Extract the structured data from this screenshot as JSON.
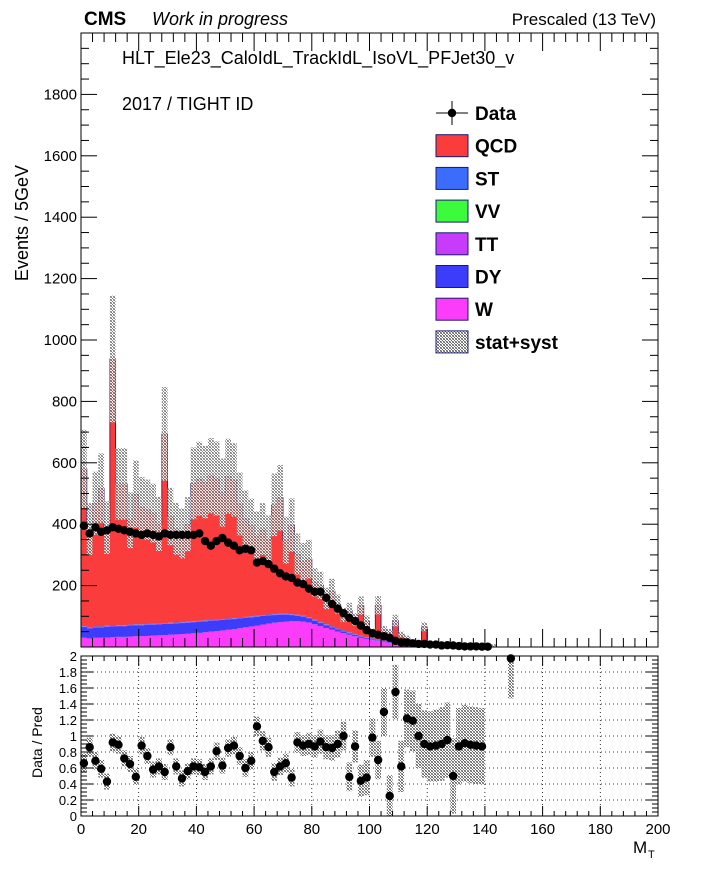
{
  "header": {
    "experiment": "CMS",
    "status": "Work in progress",
    "energy": "Prescaled (13 TeV)",
    "trigger": "HLT_Ele23_CaloIdL_TrackIdL_IsoVL_PFJet30_v",
    "selection": "2017 / TIGHT ID"
  },
  "colors": {
    "QCD": "#fb3c3c",
    "ST": "#3c6cfb",
    "VV": "#3cfb3c",
    "TT": "#c73cfb",
    "DY": "#3c3cfb",
    "W": "#fb3cfb",
    "data": "#000000",
    "band": "#777777"
  },
  "chart_data": [
    {
      "type": "bar",
      "stacked": true,
      "title": "",
      "xlabel": "M_T",
      "ylabel": "Events / 5GeV",
      "xlim": [
        0,
        200
      ],
      "ylim": [
        0,
        2000
      ],
      "x_ticks": [
        0,
        20,
        40,
        60,
        80,
        100,
        120,
        140,
        160,
        180,
        200
      ],
      "y_ticks": [
        200,
        400,
        600,
        800,
        1000,
        1200,
        1400,
        1600,
        1800
      ],
      "grid": false,
      "legend_position": "top-right",
      "bin_width": 2,
      "legend": [
        {
          "name": "Data",
          "style": "marker"
        },
        {
          "name": "QCD",
          "style": "fill"
        },
        {
          "name": "ST",
          "style": "fill"
        },
        {
          "name": "VV",
          "style": "fill"
        },
        {
          "name": "TT",
          "style": "fill"
        },
        {
          "name": "DY",
          "style": "fill"
        },
        {
          "name": "W",
          "style": "fill"
        },
        {
          "name": "stat+syst",
          "style": "hatch"
        }
      ],
      "x": [
        1,
        3,
        5,
        7,
        9,
        11,
        13,
        15,
        17,
        19,
        21,
        23,
        25,
        27,
        29,
        31,
        33,
        35,
        37,
        39,
        41,
        43,
        45,
        47,
        49,
        51,
        53,
        55,
        57,
        59,
        61,
        63,
        65,
        67,
        69,
        71,
        73,
        75,
        77,
        79,
        81,
        83,
        85,
        87,
        89,
        91,
        93,
        95,
        97,
        99,
        101,
        103,
        105,
        107,
        109,
        111,
        113,
        115,
        117,
        119,
        121,
        123,
        125,
        127,
        129,
        131,
        133,
        135,
        137,
        139,
        141,
        143,
        145,
        147,
        149,
        151
      ],
      "series": [
        {
          "name": "W",
          "values": [
            30,
            28,
            30,
            30,
            31,
            32,
            33,
            33,
            34,
            35,
            35,
            36,
            37,
            38,
            39,
            40,
            41,
            42,
            43,
            45,
            46,
            48,
            50,
            52,
            54,
            56,
            58,
            61,
            64,
            67,
            70,
            73,
            76,
            79,
            81,
            83,
            84,
            84,
            83,
            80,
            74,
            68,
            62,
            56,
            50,
            45,
            40,
            35,
            30,
            26,
            22,
            19,
            16,
            13,
            11,
            9,
            7,
            6,
            5,
            4,
            4,
            3,
            3,
            2,
            2,
            2,
            1,
            1,
            1,
            1,
            1,
            1,
            0,
            0,
            0,
            0
          ]
        },
        {
          "name": "DY",
          "values": [
            35,
            33,
            34,
            34,
            35,
            35,
            35,
            35,
            36,
            36,
            36,
            36,
            36,
            36,
            36,
            36,
            36,
            36,
            36,
            36,
            36,
            36,
            35,
            35,
            34,
            34,
            33,
            32,
            31,
            30,
            29,
            28,
            27,
            25,
            24,
            22,
            20,
            18,
            16,
            14,
            12,
            10,
            9,
            8,
            7,
            6,
            5,
            4,
            4,
            3,
            3,
            2,
            2,
            2,
            1,
            1,
            1,
            1,
            1,
            1,
            0,
            0,
            0,
            0,
            0,
            0,
            0,
            0,
            0,
            0,
            0,
            0,
            0,
            0,
            0,
            0
          ]
        },
        {
          "name": "TT",
          "values": [
            1,
            1,
            1,
            1,
            1,
            1,
            1,
            1,
            1,
            1,
            1,
            1,
            1,
            1,
            1,
            1,
            1,
            1,
            1,
            1,
            1,
            1,
            1,
            1,
            1,
            1,
            1,
            1,
            1,
            1,
            1,
            1,
            1,
            1,
            1,
            1,
            1,
            1,
            1,
            1,
            1,
            1,
            1,
            1,
            1,
            1,
            1,
            1,
            1,
            1,
            1,
            1,
            1,
            1,
            1,
            1,
            0,
            0,
            0,
            0,
            0,
            0,
            0,
            0,
            0,
            0,
            0,
            0,
            0,
            0,
            0,
            0,
            0,
            0,
            0,
            0
          ]
        },
        {
          "name": "VV",
          "values": [
            0,
            0,
            0,
            0,
            0,
            0,
            0,
            0,
            0,
            0,
            0,
            0,
            0,
            0,
            0,
            0,
            0,
            0,
            0,
            0,
            0,
            0,
            0,
            0,
            0,
            0,
            0,
            0,
            0,
            0,
            0,
            0,
            0,
            0,
            0,
            0,
            0,
            0,
            0,
            0,
            0,
            0,
            0,
            0,
            0,
            0,
            0,
            0,
            0,
            0,
            0,
            0,
            0,
            0,
            0,
            0,
            0,
            0,
            0,
            0,
            0,
            0,
            0,
            0,
            0,
            0,
            0,
            0,
            0,
            0,
            0,
            0,
            0,
            0,
            0,
            0
          ]
        },
        {
          "name": "ST",
          "values": [
            2,
            2,
            2,
            2,
            2,
            2,
            2,
            2,
            2,
            2,
            2,
            2,
            2,
            2,
            2,
            2,
            2,
            2,
            2,
            2,
            2,
            2,
            2,
            2,
            2,
            2,
            2,
            2,
            2,
            2,
            2,
            2,
            2,
            2,
            2,
            2,
            2,
            2,
            2,
            2,
            2,
            2,
            2,
            2,
            2,
            2,
            2,
            2,
            2,
            2,
            2,
            2,
            2,
            2,
            1,
            1,
            1,
            1,
            1,
            1,
            0,
            0,
            0,
            0,
            0,
            0,
            0,
            0,
            0,
            0,
            0,
            0,
            0,
            0,
            0,
            0
          ]
        },
        {
          "name": "QCD",
          "values": [
            512,
            320,
            401,
            450,
            320,
            868,
            460,
            460,
            340,
            424,
            380,
            372,
            360,
            324,
            616,
            346,
            305,
            289,
            318,
            449,
            463,
            450,
            470,
            459,
            412,
            463,
            450,
            370,
            320,
            296,
            260,
            280,
            245,
            356,
            378,
            240,
            290,
            198,
            176,
            189,
            122,
            120,
            84,
            115,
            80,
            50,
            70,
            48,
            98,
            52,
            21,
            112,
            35,
            30,
            72,
            29,
            20,
            6,
            3,
            60,
            4,
            4,
            1,
            1,
            3,
            3,
            2,
            1,
            2,
            1,
            1,
            0,
            0,
            0,
            0,
            0
          ]
        },
        {
          "name": "Data",
          "values": [
            395,
            370,
            390,
            375,
            380,
            390,
            385,
            380,
            375,
            370,
            365,
            370,
            365,
            360,
            370,
            365,
            365,
            365,
            365,
            365,
            370,
            345,
            330,
            345,
            355,
            340,
            330,
            315,
            320,
            315,
            275,
            280,
            270,
            255,
            240,
            230,
            225,
            210,
            205,
            190,
            180,
            180,
            160,
            140,
            125,
            110,
            95,
            85,
            70,
            55,
            45,
            40,
            35,
            30,
            20,
            15,
            15,
            12,
            10,
            10,
            8,
            8,
            5,
            6,
            5,
            3,
            2,
            2,
            2,
            1,
            1,
            0,
            0,
            0,
            0,
            0
          ]
        }
      ]
    },
    {
      "type": "scatter",
      "title": "",
      "xlabel": "M_T",
      "ylabel": "Data / Pred",
      "xlim": [
        0,
        200
      ],
      "ylim": [
        0,
        2
      ],
      "x_ticks": [
        0,
        20,
        40,
        60,
        80,
        100,
        120,
        140,
        160,
        180,
        200
      ],
      "y_ticks": [
        0,
        0.2,
        0.4,
        0.6,
        0.8,
        1,
        1.2,
        1.4,
        1.6,
        1.8,
        2
      ],
      "grid": true,
      "x": [
        1,
        3,
        5,
        7,
        9,
        11,
        13,
        15,
        17,
        19,
        21,
        23,
        25,
        27,
        29,
        31,
        33,
        35,
        37,
        39,
        41,
        43,
        45,
        47,
        49,
        51,
        53,
        55,
        57,
        59,
        61,
        63,
        65,
        67,
        69,
        71,
        73,
        75,
        77,
        79,
        81,
        83,
        85,
        87,
        89,
        91,
        93,
        95,
        97,
        99,
        101,
        103,
        105,
        107,
        109,
        111,
        113,
        115,
        117,
        119,
        121,
        123,
        125,
        127,
        129,
        131,
        133,
        135,
        137,
        139,
        149
      ],
      "series": [
        {
          "name": "Data / Pred",
          "values": [
            0.66,
            0.86,
            0.69,
            0.59,
            0.43,
            0.92,
            0.89,
            0.72,
            0.65,
            0.49,
            0.88,
            0.75,
            0.58,
            0.62,
            0.55,
            0.86,
            0.62,
            0.47,
            0.56,
            0.62,
            0.61,
            0.55,
            0.62,
            0.81,
            0.63,
            0.85,
            0.88,
            0.75,
            0.6,
            0.69,
            1.12,
            0.94,
            0.86,
            0.55,
            0.62,
            0.66,
            0.48,
            0.92,
            0.88,
            0.9,
            0.87,
            0.93,
            0.86,
            0.85,
            0.9,
            1.0,
            0.49,
            0.87,
            0.44,
            0.48,
            0.98,
            0.7,
            1.3,
            0.25,
            1.55,
            0.62,
            1.22,
            1.19,
            1.0,
            0.9,
            0.87,
            0.88,
            0.9,
            0.95,
            0.5,
            0.87,
            0.91,
            0.89,
            0.88,
            0.87,
            1.97
          ]
        },
        {
          "name": "stat+syst",
          "values": [
            0.12,
            0.12,
            0.11,
            0.11,
            0.1,
            0.11,
            0.11,
            0.1,
            0.1,
            0.1,
            0.11,
            0.1,
            0.1,
            0.1,
            0.1,
            0.1,
            0.1,
            0.1,
            0.1,
            0.1,
            0.1,
            0.1,
            0.1,
            0.11,
            0.1,
            0.11,
            0.11,
            0.11,
            0.11,
            0.11,
            0.12,
            0.12,
            0.12,
            0.11,
            0.11,
            0.12,
            0.11,
            0.13,
            0.13,
            0.14,
            0.14,
            0.15,
            0.15,
            0.16,
            0.17,
            0.18,
            0.18,
            0.2,
            0.2,
            0.22,
            0.24,
            0.24,
            0.3,
            0.26,
            0.34,
            0.32,
            0.36,
            0.38,
            0.4,
            0.42,
            0.44,
            0.45,
            0.46,
            0.47,
            0.47,
            0.48,
            0.48,
            0.48,
            0.48,
            0.48,
            0.5
          ]
        }
      ]
    }
  ]
}
